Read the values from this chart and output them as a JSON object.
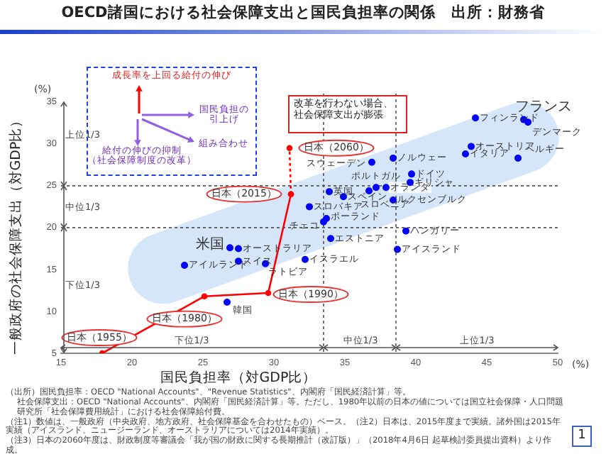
{
  "chart_data": {
    "type": "scatter",
    "title": "OECD諸国における社会保障支出と国民負担率の関係　出所：財務省",
    "xlabel": "国民負担率（対GDP比）",
    "ylabel": "一般政府の社会保障支出（対GDP比）",
    "xlim": [
      15,
      50
    ],
    "xticks": [
      15,
      20,
      25,
      30,
      35,
      40,
      45,
      50
    ],
    "ylim": [
      5,
      36
    ],
    "yticks": [
      5,
      10,
      15,
      20,
      25,
      30,
      35
    ],
    "grid": false,
    "marker": "circle",
    "series": [
      {
        "color": "#0000ff",
        "x": [
          44.2,
          47.6,
          47.9,
          43.9,
          43.5,
          47.2,
          36.9,
          38.4,
          39.7,
          39.6,
          33.9,
          37.2,
          37.9,
          34.9,
          36.7,
          38.4,
          32.5,
          33.5,
          33.7,
          34.0,
          39.3,
          38.7,
          26.9,
          27.5,
          23.7,
          27.5,
          29.4,
          26.7,
          32.2
        ],
        "values": [
          33.1,
          32.9,
          32.6,
          29.7,
          28.8,
          28.3,
          27.8,
          28.3,
          26.4,
          25.4,
          24.3,
          24.8,
          24.8,
          23.7,
          24.4,
          23.3,
          22.5,
          20.7,
          21.1,
          18.7,
          19.6,
          17.4,
          17.6,
          17.5,
          15.5,
          16.0,
          15.7,
          11.1,
          16.2
        ]
      },
      {
        "type": "line",
        "color": "#ff0000",
        "x": [
          17.9,
          25.1,
          29.6,
          31.2
        ],
        "values": [
          5,
          11.8,
          12.2,
          24.0
        ]
      },
      {
        "type": "line",
        "color": "#ff0000",
        "line_style": "dotted",
        "x": [
          31.2,
          31.1
        ],
        "values": [
          24.0,
          29.5
        ]
      }
    ],
    "ref_lines": [
      {
        "axis": "y",
        "value": 20,
        "line_style": "dotted"
      },
      {
        "axis": "y",
        "value": 25,
        "line_style": "dotted"
      },
      {
        "axis": "x",
        "value": 33.5,
        "line_style": "dotted"
      },
      {
        "axis": "x",
        "value": 38.6,
        "line_style": "dotted"
      }
    ],
    "annotations": [
      {
        "text": "フィンランド",
        "x": 44.2,
        "y": 33.1
      },
      {
        "text": "フランス",
        "x": 47.6,
        "y": 32.9
      },
      {
        "text": "デンマーク",
        "x": 47.9,
        "y": 32.6
      },
      {
        "text": "オーストリア",
        "x": 43.9,
        "y": 29.7
      },
      {
        "text": "イタリア",
        "x": 43.5,
        "y": 28.8
      },
      {
        "text": "ベルギー",
        "x": 47.2,
        "y": 28.3
      },
      {
        "text": "スウェーデン",
        "x": 36.9,
        "y": 27.8
      },
      {
        "text": "ノルウェー",
        "x": 38.4,
        "y": 28.3
      },
      {
        "text": "ドイツ",
        "x": 39.7,
        "y": 26.4
      },
      {
        "text": "ギリシャ",
        "x": 39.6,
        "y": 25.4
      },
      {
        "text": "英国",
        "x": 33.9,
        "y": 24.3
      },
      {
        "text": "ポルトガル",
        "x": 37.2,
        "y": 24.8
      },
      {
        "text": "オランダ",
        "x": 37.9,
        "y": 24.8
      },
      {
        "text": "スペイン",
        "x": 34.9,
        "y": 23.7
      },
      {
        "text": "スロベニア",
        "x": 36.7,
        "y": 24.4
      },
      {
        "text": "ルクセンブルク",
        "x": 38.4,
        "y": 23.3
      },
      {
        "text": "スロバキア",
        "x": 32.5,
        "y": 22.5
      },
      {
        "text": "チェコ",
        "x": 33.5,
        "y": 20.7
      },
      {
        "text": "ポーランド",
        "x": 33.7,
        "y": 21.1
      },
      {
        "text": "エストニア",
        "x": 34.0,
        "y": 18.7
      },
      {
        "text": "ハンガリー",
        "x": 39.3,
        "y": 19.6
      },
      {
        "text": "アイスランド",
        "x": 38.7,
        "y": 17.4
      },
      {
        "text": "米国",
        "x": 26.9,
        "y": 17.6
      },
      {
        "text": "オーストラリア",
        "x": 27.5,
        "y": 17.5
      },
      {
        "text": "アイルランド",
        "x": 23.7,
        "y": 15.5
      },
      {
        "text": "スイス",
        "x": 27.5,
        "y": 16.0
      },
      {
        "text": "ラトビア",
        "x": 29.4,
        "y": 15.7
      },
      {
        "text": "韓国",
        "x": 26.7,
        "y": 11.1
      },
      {
        "text": "イスラエル",
        "x": 32.2,
        "y": 16.2
      },
      {
        "text": "日本（1955）",
        "x": 17.9,
        "y": 5
      },
      {
        "text": "日本（1980）",
        "x": 25.1,
        "y": 11.8
      },
      {
        "text": "日本（1990）",
        "x": 29.6,
        "y": 12.2
      },
      {
        "text": "日本（2015）",
        "x": 31.2,
        "y": 24.0
      },
      {
        "text": "日本（2060）",
        "x": 31.1,
        "y": 29.5
      },
      "成長率を上回る給付の伸び",
      "国民負担の引上げ",
      "組み合わせ",
      "給付の伸びの抑制（社会保障制度の改革）",
      "改革を行わない場合、社会保障支出が膨張",
      "（出所）国民負担率：OECD \"National Accounts\"、\"Revenue Statistics\"、内閣府「国民経済計算」等。",
      "社会保障支出：OECD \"National Accounts\"、内閣府「国民経済計算」等。ただし、1980年以前の日本の値については国立社会保障・人口問題研究所「社会保障費用統計」における社会保障給付費。",
      "（注1）数値は、一般政府（中央政府、地方政府、社会保障基金を合わせたもの）ベース。（注2）日本は、2015年度まで実績。諸外国は2015年実績（アイスランド、ニュージーランド、オーストラリアについては2014年実績）。",
      "（注3）日本の2060年度は、財政制度等審議会「我が国の財政に関する長期推計（改訂版）」（2018年4月6日 起草検討委員提出資料）より作成。",
      "1",
      "(%)",
      "(%)",
      "上位1/3",
      "中位1/3",
      "下位1/3",
      "下位1/3",
      "中位1/3",
      "上位1/3"
    ]
  }
}
